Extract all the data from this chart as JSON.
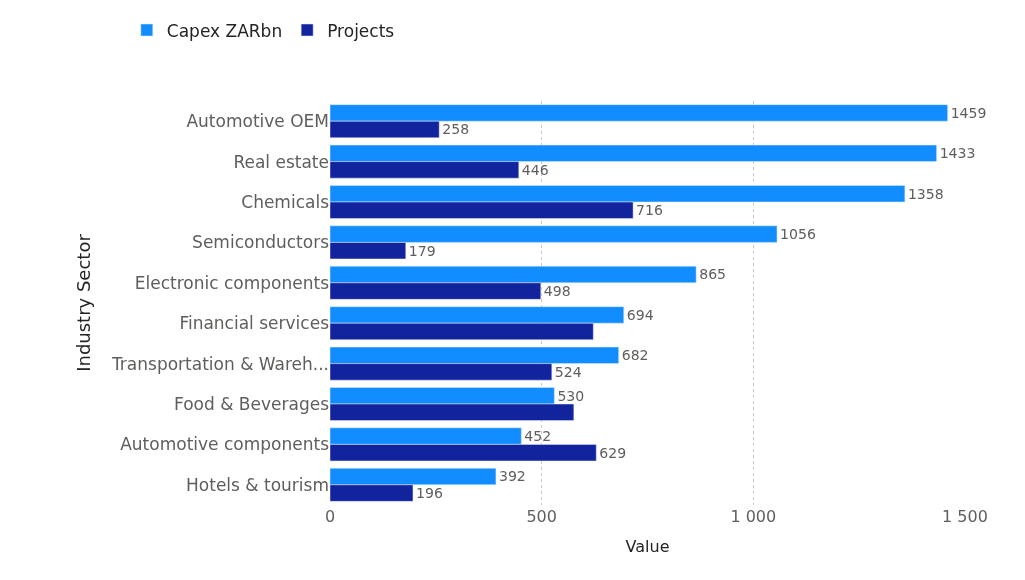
{
  "chart_data": {
    "type": "bar",
    "orientation": "horizontal",
    "xlabel": "Value",
    "ylabel": "Industry Sector",
    "categories": [
      "Automotive OEM",
      "Real estate",
      "Chemicals",
      "Semiconductors",
      "Electronic components",
      "Financial services",
      "Transportation & Wareh...",
      "Food & Beverages",
      "Automotive components",
      "Hotels & tourism"
    ],
    "series": [
      {
        "name": "Capex ZARbn",
        "color": "#118dff",
        "values": [
          1459,
          1433,
          1358,
          1056,
          865,
          694,
          682,
          530,
          452,
          392
        ],
        "value_labels": [
          "1459",
          "1433",
          "1358",
          "1056",
          "865",
          "694",
          "682",
          "530",
          "452",
          "392"
        ]
      },
      {
        "name": "Projects",
        "color": "#12239e",
        "values": [
          258,
          446,
          716,
          179,
          498,
          622,
          524,
          576,
          629,
          196
        ],
        "value_labels": [
          "258",
          "446",
          "716",
          "179",
          "498",
          null,
          "524",
          null,
          "629",
          "196"
        ]
      }
    ],
    "xlim": [
      0,
      1500
    ],
    "xticks": [
      0,
      500,
      {
        "value": 1000,
        "label": "1 000"
      },
      {
        "value": 1500,
        "label": "1 500"
      }
    ],
    "grid": "x",
    "legend": "top left"
  }
}
